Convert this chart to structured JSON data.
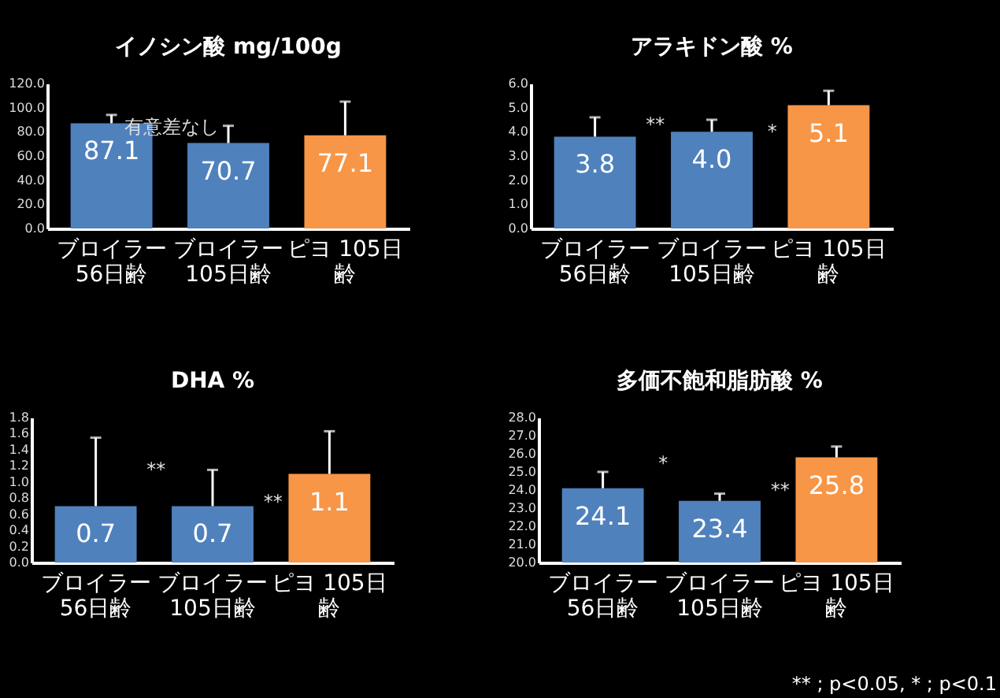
{
  "chart_data": [
    {
      "type": "bar",
      "title": "イノシン酸  mg/100g",
      "categories": [
        "ブロイラー56日齢",
        "ブロイラー105日齢",
        "ピヨ 105日齢"
      ],
      "values": [
        87.1,
        70.7,
        77.1
      ],
      "colors": [
        "#4f81bd",
        "#4f81bd",
        "#f79646"
      ],
      "errors": [
        [
          87.1,
          94
        ],
        [
          70.7,
          85
        ],
        [
          77.1,
          105
        ]
      ],
      "data_labels": true,
      "ylim": [
        0,
        120
      ],
      "yticks": [
        {
          "value": 0,
          "label": "0.0"
        },
        {
          "value": 20,
          "label": "20.0"
        },
        {
          "value": 40,
          "label": "40.0"
        },
        {
          "value": 60,
          "label": "60.0"
        },
        {
          "value": 80,
          "label": "80.0"
        },
        {
          "value": 100,
          "label": "100.0"
        },
        {
          "value": 120,
          "label": "120.0"
        }
      ],
      "annotations": [
        {
          "text": "有意差なし",
          "x": "ブロイラー56日齢",
          "y": 84
        }
      ]
    },
    {
      "type": "bar",
      "title": "アラキドン酸  %",
      "categories": [
        "ブロイラー56日齢",
        "ブロイラー105日齢",
        "ピヨ 105日齢"
      ],
      "values": [
        3.8,
        4.0,
        5.1
      ],
      "colors": [
        "#4f81bd",
        "#4f81bd",
        "#f79646"
      ],
      "errors": [
        [
          3.8,
          4.6
        ],
        [
          4.0,
          4.5
        ],
        [
          5.1,
          5.7
        ]
      ],
      "value_labels": [
        "3.8",
        "4.0",
        "5.1"
      ],
      "ylim": [
        0,
        6
      ],
      "yticks": [
        {
          "value": 0,
          "label": "0.0"
        },
        {
          "value": 1,
          "label": "1.0"
        },
        {
          "value": 2,
          "label": "2.0"
        },
        {
          "value": 3,
          "label": "3.0"
        },
        {
          "value": 4,
          "label": "4.0"
        },
        {
          "value": 5,
          "label": "5.0"
        },
        {
          "value": 6,
          "label": "6.0"
        }
      ],
      "annotations": [
        {
          "text": "**",
          "x": "ブロイラー56日齢",
          "y": 4.3
        },
        {
          "text": "*",
          "x": "ブロイラー105日齢",
          "y": 4.0
        }
      ]
    },
    {
      "type": "bar",
      "title": "DHA  %",
      "categories": [
        "ブロイラー56日齢",
        "ブロイラー105日齢",
        "ピヨ 105日齢"
      ],
      "values": [
        0.7,
        0.7,
        1.1
      ],
      "colors": [
        "#4f81bd",
        "#4f81bd",
        "#f79646"
      ],
      "errors": [
        [
          0.7,
          1.55
        ],
        [
          0.7,
          1.15
        ],
        [
          1.1,
          1.63
        ]
      ],
      "data_labels": true,
      "ylim": [
        0,
        1.8
      ],
      "yticks": [
        {
          "value": 0,
          "label": "0.0"
        },
        {
          "value": 0.2,
          "label": "0.2"
        },
        {
          "value": 0.4,
          "label": "0.4"
        },
        {
          "value": 0.6,
          "label": "0.6"
        },
        {
          "value": 0.8,
          "label": "0.8"
        },
        {
          "value": 1,
          "label": "1.0"
        },
        {
          "value": 1.2,
          "label": "1.2"
        },
        {
          "value": 1.4,
          "label": "1.4"
        },
        {
          "value": 1.6,
          "label": "1.6"
        },
        {
          "value": 1.8,
          "label": "1.8"
        }
      ],
      "annotations": [
        {
          "text": "**",
          "x": "ブロイラー56日齢",
          "y": 1.15
        },
        {
          "text": "**",
          "x": "ブロイラー105日齢",
          "y": 0.75
        }
      ]
    },
    {
      "type": "bar",
      "title": "多価不飽和脂肪酸  %",
      "categories": [
        "ブロイラー56日齢",
        "ブロイラー105日齢",
        "ピヨ 105日齢"
      ],
      "values": [
        24.1,
        23.4,
        25.8
      ],
      "colors": [
        "#4f81bd",
        "#4f81bd",
        "#f79646"
      ],
      "errors": [
        [
          24.1,
          25.0
        ],
        [
          23.4,
          23.8
        ],
        [
          25.8,
          26.4
        ]
      ],
      "data_labels": true,
      "ylim": [
        20,
        28
      ],
      "yticks": [
        {
          "value": 20,
          "label": "20.0"
        },
        {
          "value": 21,
          "label": "21.0"
        },
        {
          "value": 22,
          "label": "22.0"
        },
        {
          "value": 23,
          "label": "23.0"
        },
        {
          "value": 24,
          "label": "24.0"
        },
        {
          "value": 25,
          "label": "25.0"
        },
        {
          "value": 26,
          "label": "26.0"
        },
        {
          "value": 27,
          "label": "27.0"
        },
        {
          "value": 28,
          "label": "28.0"
        }
      ],
      "annotations": [
        {
          "text": "*",
          "x": "ブロイラー56日齢",
          "y": 25.5
        },
        {
          "text": "**",
          "x": "ブロイラー105日齢",
          "y": 24.0
        },
        "** ; p<0.05, * ; p<0.1"
      ]
    }
  ]
}
